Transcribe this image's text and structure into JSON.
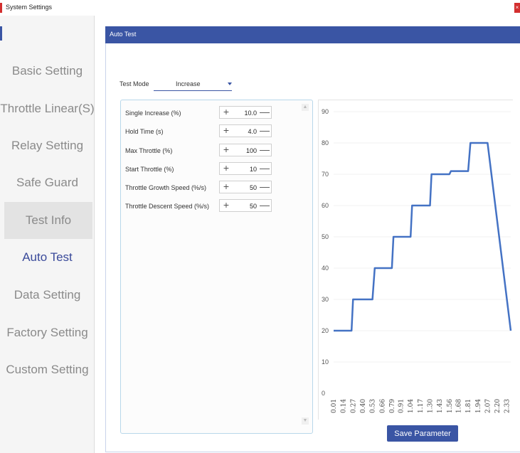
{
  "window": {
    "title": "System Settings",
    "close_glyph": "×"
  },
  "sidebar": {
    "items": [
      {
        "label": "Basic Setting",
        "state": "normal"
      },
      {
        "label": "Throttle Linear(S)",
        "state": "normal"
      },
      {
        "label": "Relay Setting",
        "state": "normal"
      },
      {
        "label": "Safe Guard",
        "state": "normal"
      },
      {
        "label": "Test Info",
        "state": "hover"
      },
      {
        "label": "Auto Test",
        "state": "active"
      },
      {
        "label": "Data Setting",
        "state": "normal"
      },
      {
        "label": "Factory Setting",
        "state": "normal"
      },
      {
        "label": "Custom Setting",
        "state": "normal"
      }
    ]
  },
  "panel": {
    "title": "Auto Test"
  },
  "test_mode": {
    "label": "Test Mode",
    "value": "Increase"
  },
  "params": [
    {
      "label": "Single Increase (%)",
      "value": "10.0"
    },
    {
      "label": "Hold Time (s)",
      "value": "4.0"
    },
    {
      "label": "Max Throttle (%)",
      "value": "100"
    },
    {
      "label": "Start Throttle (%)",
      "value": "10"
    },
    {
      "label": "Throttle Growth Speed (%/s)",
      "value": "50"
    },
    {
      "label": "Throttle Descent Speed (%/s)",
      "value": "50"
    }
  ],
  "stepper_icons": {
    "plus": "+",
    "minus": "—"
  },
  "scroll_icons": {
    "up": "▲",
    "down": "▼"
  },
  "save_button": {
    "label": "Save Parameter"
  },
  "colors": {
    "accent": "#3a55a4",
    "line": "#4472c4",
    "panel_border": "#b8d7ea"
  },
  "chart_data": {
    "type": "line",
    "ylim": [
      0,
      90
    ],
    "yticks": [
      0,
      10,
      20,
      30,
      40,
      50,
      60,
      70,
      80,
      90
    ],
    "xtick_labels": [
      "0.01",
      "0.14",
      "0.27",
      "0.40",
      "0.53",
      "0.66",
      "0.79",
      "0.91",
      "1.04",
      "1.17",
      "1.30",
      "1.43",
      "1.56",
      "1.68",
      "1.81",
      "1.94",
      "2.07",
      "2.20",
      "2.33"
    ],
    "grid": true,
    "legend": "none",
    "series": [
      {
        "x": [
          0.01,
          0.25,
          0.27,
          0.53,
          0.56,
          0.79,
          0.81,
          1.04,
          1.06,
          1.3,
          1.32,
          1.56,
          1.58,
          1.81,
          1.84,
          2.07,
          2.38
        ],
        "y": [
          20,
          20,
          30,
          30,
          40,
          40,
          50,
          50,
          60,
          60,
          70,
          70,
          71,
          71,
          80,
          80,
          20
        ]
      }
    ]
  }
}
